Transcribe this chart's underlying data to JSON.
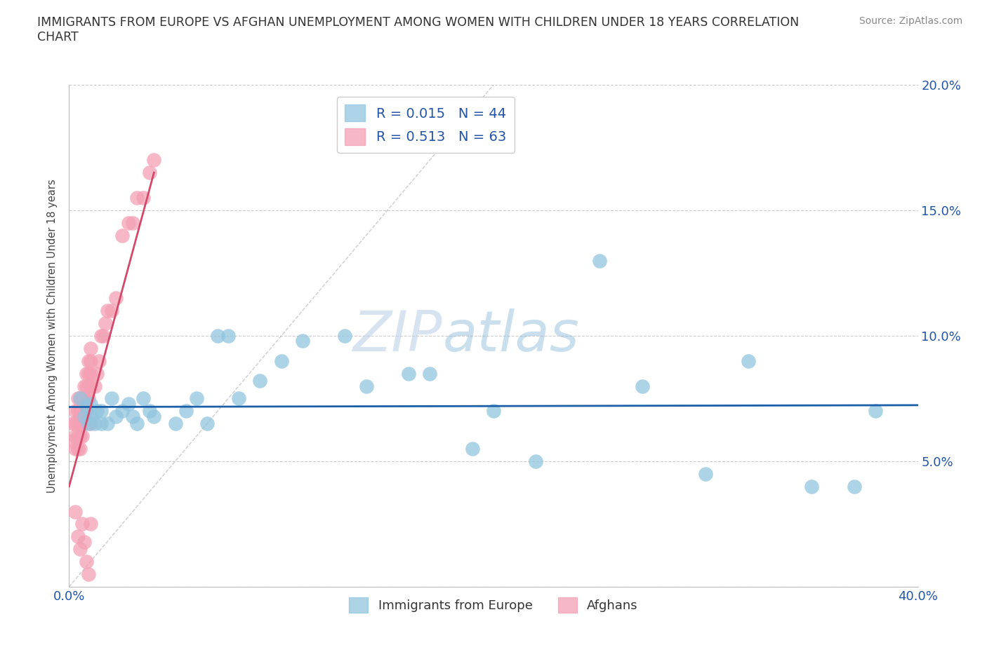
{
  "title": "IMMIGRANTS FROM EUROPE VS AFGHAN UNEMPLOYMENT AMONG WOMEN WITH CHILDREN UNDER 18 YEARS CORRELATION\nCHART",
  "source": "Source: ZipAtlas.com",
  "ylabel": "Unemployment Among Women with Children Under 18 years",
  "xlim": [
    0,
    0.4
  ],
  "ylim": [
    0,
    0.2
  ],
  "xticks": [
    0.0,
    0.05,
    0.1,
    0.15,
    0.2,
    0.25,
    0.3,
    0.35,
    0.4
  ],
  "yticks": [
    0.0,
    0.05,
    0.1,
    0.15,
    0.2
  ],
  "blue_color": "#92c5de",
  "pink_color": "#f4a0b5",
  "trend_blue": "#1a5fa8",
  "trend_pink": "#d4496a",
  "watermark_zip": "ZIP",
  "watermark_atlas": "atlas",
  "blue_scatter_x": [
    0.005,
    0.007,
    0.008,
    0.009,
    0.01,
    0.01,
    0.012,
    0.013,
    0.015,
    0.015,
    0.018,
    0.02,
    0.022,
    0.025,
    0.028,
    0.03,
    0.032,
    0.035,
    0.038,
    0.04,
    0.05,
    0.055,
    0.06,
    0.065,
    0.07,
    0.075,
    0.08,
    0.09,
    0.1,
    0.11,
    0.13,
    0.14,
    0.16,
    0.17,
    0.19,
    0.2,
    0.22,
    0.25,
    0.27,
    0.3,
    0.32,
    0.35,
    0.37,
    0.38
  ],
  "blue_scatter_y": [
    0.075,
    0.068,
    0.072,
    0.065,
    0.068,
    0.073,
    0.065,
    0.07,
    0.065,
    0.07,
    0.065,
    0.075,
    0.068,
    0.07,
    0.073,
    0.068,
    0.065,
    0.075,
    0.07,
    0.068,
    0.065,
    0.07,
    0.075,
    0.065,
    0.1,
    0.1,
    0.075,
    0.082,
    0.09,
    0.098,
    0.1,
    0.08,
    0.085,
    0.085,
    0.055,
    0.07,
    0.05,
    0.13,
    0.08,
    0.045,
    0.09,
    0.04,
    0.04,
    0.07
  ],
  "pink_scatter_x": [
    0.002,
    0.002,
    0.003,
    0.003,
    0.003,
    0.003,
    0.004,
    0.004,
    0.004,
    0.004,
    0.004,
    0.005,
    0.005,
    0.005,
    0.005,
    0.005,
    0.005,
    0.005,
    0.006,
    0.006,
    0.006,
    0.006,
    0.007,
    0.007,
    0.007,
    0.007,
    0.008,
    0.008,
    0.008,
    0.008,
    0.009,
    0.009,
    0.009,
    0.009,
    0.01,
    0.01,
    0.01,
    0.01,
    0.01,
    0.012,
    0.013,
    0.014,
    0.015,
    0.016,
    0.017,
    0.018,
    0.02,
    0.022,
    0.025,
    0.028,
    0.03,
    0.032,
    0.035,
    0.038,
    0.04,
    0.003,
    0.004,
    0.005,
    0.006,
    0.007,
    0.008,
    0.009,
    0.01
  ],
  "pink_scatter_y": [
    0.065,
    0.058,
    0.055,
    0.06,
    0.065,
    0.07,
    0.055,
    0.06,
    0.065,
    0.07,
    0.075,
    0.055,
    0.06,
    0.065,
    0.07,
    0.075,
    0.065,
    0.068,
    0.06,
    0.065,
    0.07,
    0.075,
    0.065,
    0.07,
    0.075,
    0.08,
    0.07,
    0.075,
    0.08,
    0.085,
    0.075,
    0.08,
    0.085,
    0.09,
    0.08,
    0.085,
    0.09,
    0.095,
    0.065,
    0.08,
    0.085,
    0.09,
    0.1,
    0.1,
    0.105,
    0.11,
    0.11,
    0.115,
    0.14,
    0.145,
    0.145,
    0.155,
    0.155,
    0.165,
    0.17,
    0.03,
    0.02,
    0.015,
    0.025,
    0.018,
    0.01,
    0.005,
    0.025
  ],
  "pink_trend_x0": 0.0,
  "pink_trend_y0": 0.04,
  "pink_trend_x1": 0.04,
  "pink_trend_y1": 0.165,
  "blue_trend_y": 0.072
}
